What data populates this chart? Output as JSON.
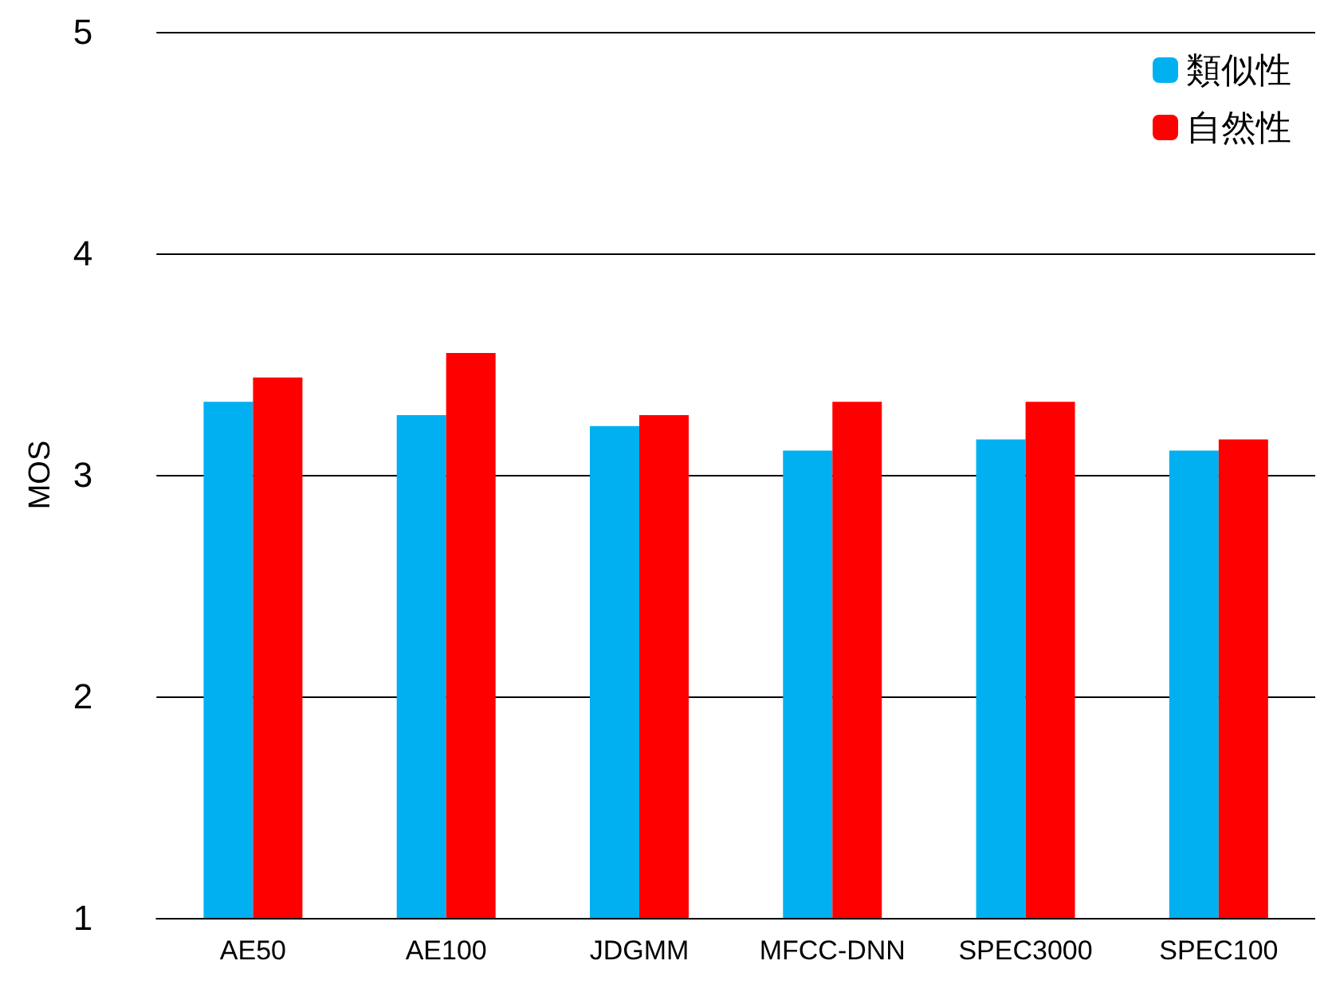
{
  "chart_data": {
    "type": "bar",
    "ylabel": "MOS",
    "categories": [
      "AE50",
      "AE100",
      "JDGMM",
      "MFCC-DNN",
      "SPEC3000",
      "SPEC100"
    ],
    "series": [
      {
        "name": "類似性",
        "color": "#00b0f0",
        "values": [
          3.33,
          3.27,
          3.22,
          3.11,
          3.16,
          3.11
        ]
      },
      {
        "name": "自然性",
        "color": "#ff0000",
        "values": [
          3.44,
          3.55,
          3.27,
          3.33,
          3.33,
          3.16
        ]
      }
    ],
    "ylim": [
      1,
      5
    ],
    "yticks": [
      1,
      2,
      3,
      4,
      5
    ],
    "grid": "y",
    "legend": "top right"
  }
}
